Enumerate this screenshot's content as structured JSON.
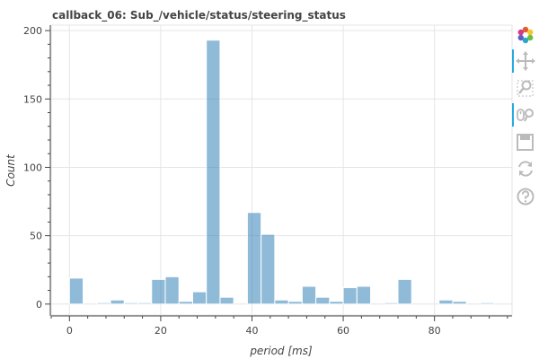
{
  "chart_data": {
    "type": "bar",
    "title": "callback_06: Sub_/vehicle/status/steering_status",
    "xlabel": "period [ms]",
    "ylabel": "Count",
    "xlim": [
      -4,
      97
    ],
    "ylim": [
      -8,
      204
    ],
    "x_ticks": [
      0,
      20,
      40,
      60,
      80
    ],
    "y_ticks": [
      0,
      50,
      100,
      150,
      200
    ],
    "grid": true,
    "bar_color": "#1f77b4",
    "bins": [
      {
        "left": 0.0,
        "right": 3.0,
        "count": 19
      },
      {
        "left": 3.0,
        "right": 6.0,
        "count": 0
      },
      {
        "left": 6.0,
        "right": 9.0,
        "count": 1
      },
      {
        "left": 9.0,
        "right": 12.0,
        "count": 3
      },
      {
        "left": 12.0,
        "right": 15.0,
        "count": 1
      },
      {
        "left": 15.0,
        "right": 18.0,
        "count": 1
      },
      {
        "left": 18.0,
        "right": 21.0,
        "count": 18
      },
      {
        "left": 21.0,
        "right": 24.0,
        "count": 20
      },
      {
        "left": 24.0,
        "right": 27.0,
        "count": 2
      },
      {
        "left": 27.0,
        "right": 30.0,
        "count": 9
      },
      {
        "left": 30.0,
        "right": 33.0,
        "count": 193
      },
      {
        "left": 33.0,
        "right": 36.0,
        "count": 5
      },
      {
        "left": 36.0,
        "right": 39.0,
        "count": 0
      },
      {
        "left": 39.0,
        "right": 42.0,
        "count": 67
      },
      {
        "left": 42.0,
        "right": 45.0,
        "count": 51
      },
      {
        "left": 45.0,
        "right": 48.0,
        "count": 3
      },
      {
        "left": 48.0,
        "right": 51.0,
        "count": 2
      },
      {
        "left": 51.0,
        "right": 54.0,
        "count": 13
      },
      {
        "left": 54.0,
        "right": 57.0,
        "count": 5
      },
      {
        "left": 57.0,
        "right": 60.0,
        "count": 2
      },
      {
        "left": 60.0,
        "right": 63.0,
        "count": 12
      },
      {
        "left": 63.0,
        "right": 66.0,
        "count": 13
      },
      {
        "left": 66.0,
        "right": 69.0,
        "count": 0
      },
      {
        "left": 69.0,
        "right": 72.0,
        "count": 1
      },
      {
        "left": 72.0,
        "right": 75.0,
        "count": 18
      },
      {
        "left": 75.0,
        "right": 78.0,
        "count": 0
      },
      {
        "left": 78.0,
        "right": 81.0,
        "count": 0
      },
      {
        "left": 81.0,
        "right": 84.0,
        "count": 3
      },
      {
        "left": 84.0,
        "right": 87.0,
        "count": 2
      },
      {
        "left": 87.0,
        "right": 90.0,
        "count": 0
      },
      {
        "left": 90.0,
        "right": 93.0,
        "count": 1
      },
      {
        "left": 93.0,
        "right": 96.0,
        "count": 0
      }
    ]
  },
  "toolbar": {
    "items": [
      {
        "name": "bokeh-logo-icon",
        "active": false
      },
      {
        "name": "pan-icon",
        "active": true
      },
      {
        "name": "box-zoom-icon",
        "active": false
      },
      {
        "name": "wheel-zoom-icon",
        "active": true
      },
      {
        "name": "save-icon",
        "active": false
      },
      {
        "name": "reset-icon",
        "active": false
      },
      {
        "name": "help-icon",
        "active": false
      }
    ]
  }
}
